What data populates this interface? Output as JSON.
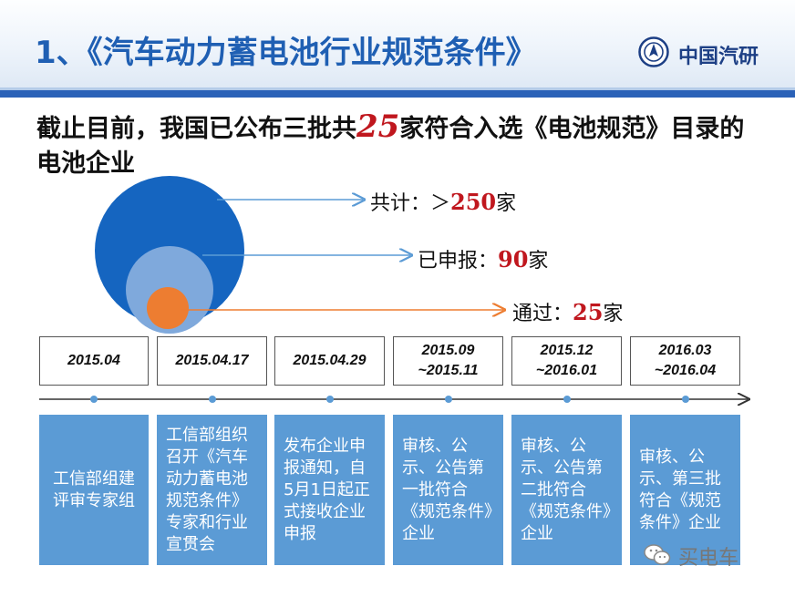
{
  "title": "1、《汽车动力蓄电池行业规范条件》",
  "logo": {
    "text": "中国汽研"
  },
  "headline": {
    "before": "截止目前，我国已公布三批共",
    "number": "25",
    "after": "家符合入选《电池规范》目录的电池企业"
  },
  "stats": [
    {
      "label": "共计：＞",
      "value": "250",
      "unit": "家"
    },
    {
      "label": "已申报：",
      "value": "90",
      "unit": "家"
    },
    {
      "label": "通过：",
      "value": "25",
      "unit": "家"
    }
  ],
  "colors": {
    "outer_circle": "#1565c0",
    "middle_circle": "#7fa9dc",
    "inner_circle": "#ed7d31",
    "box_fill": "#5b9bd5",
    "highlight": "#c0171e"
  },
  "timeline": [
    {
      "date_line1": "2015.04",
      "date_line2": "",
      "desc": "工信部组建评审专家组"
    },
    {
      "date_line1": "2015.04.17",
      "date_line2": "",
      "desc": "工信部组织召开《汽车动力蓄电池规范条件》专家和行业宣贯会"
    },
    {
      "date_line1": "2015.04.29",
      "date_line2": "",
      "desc": "发布企业申报通知，自5月1日起正式接收企业申报"
    },
    {
      "date_line1": "2015.09",
      "date_line2": "~2015.11",
      "desc": "审核、公示、公告第一批符合《规范条件》企业"
    },
    {
      "date_line1": "2015.12",
      "date_line2": "~2016.01",
      "desc": "审核、公示、公告第二批符合《规范条件》企业"
    },
    {
      "date_line1": "2016.03",
      "date_line2": "~2016.04",
      "desc": "审核、公示、第三批符合《规范条件》企业"
    }
  ],
  "watermark": {
    "text": "买电车",
    "icon": "wechat-icon"
  }
}
